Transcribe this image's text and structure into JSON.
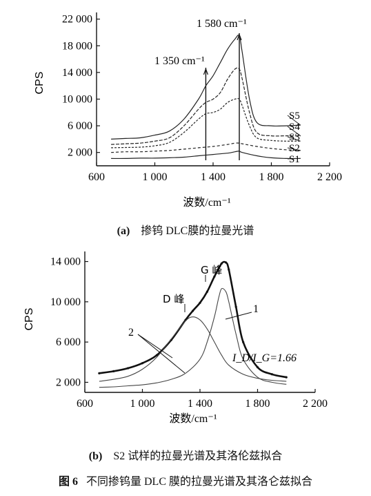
{
  "chart_data": [
    {
      "type": "line",
      "caption_id": "(a)",
      "caption_text": "掺钨 DLC膜的拉曼光谱",
      "xlabel": "波数/cm⁻¹",
      "ylabel": "CPS",
      "xlim": [
        600,
        2200
      ],
      "ylim": [
        0,
        23000
      ],
      "xticks": [
        "600",
        "1 000",
        "1 400",
        "1 800",
        "2 200"
      ],
      "yticks": [
        "2 000",
        "6 000",
        "10 000",
        "14 000",
        "18 000",
        "22 000"
      ],
      "annotations": [
        "1 580 cm⁻¹",
        "1 350 cm⁻¹"
      ],
      "markers_x": [
        1350,
        1580
      ],
      "series": [
        {
          "name": "S5",
          "x": [
            700,
            800,
            900,
            1000,
            1100,
            1200,
            1300,
            1350,
            1400,
            1450,
            1500,
            1550,
            1580,
            1600,
            1650,
            1700,
            1800,
            1900,
            2000
          ],
          "values": [
            4000,
            4100,
            4200,
            4600,
            5200,
            7000,
            10000,
            12000,
            13500,
            15500,
            17500,
            19000,
            19500,
            17000,
            10000,
            6500,
            6000,
            6000,
            6100
          ]
        },
        {
          "name": "S4",
          "x": [
            700,
            800,
            900,
            1000,
            1100,
            1200,
            1300,
            1350,
            1400,
            1450,
            1500,
            1550,
            1580,
            1600,
            1650,
            1700,
            1800,
            1900,
            2000
          ],
          "values": [
            3200,
            3300,
            3400,
            3700,
            4200,
            6000,
            8500,
            9500,
            10000,
            11000,
            13000,
            14500,
            14500,
            13000,
            8000,
            5000,
            4500,
            4500,
            4500
          ]
        },
        {
          "name": "S3",
          "x": [
            700,
            800,
            900,
            1000,
            1100,
            1200,
            1300,
            1350,
            1400,
            1450,
            1500,
            1550,
            1580,
            1600,
            1650,
            1700,
            1800,
            1900,
            2000
          ],
          "values": [
            2700,
            2750,
            2800,
            3000,
            3500,
            5000,
            7000,
            7800,
            8000,
            8500,
            9500,
            10000,
            10000,
            9000,
            6000,
            4200,
            3800,
            3700,
            3700
          ]
        },
        {
          "name": "S2",
          "x": [
            700,
            800,
            900,
            1000,
            1100,
            1200,
            1300,
            1400,
            1500,
            1550,
            1580,
            1600,
            1700,
            1800,
            1900,
            2000
          ],
          "values": [
            2000,
            2100,
            2100,
            2200,
            2300,
            2500,
            2700,
            2900,
            3200,
            3400,
            3400,
            3300,
            2900,
            2600,
            2400,
            2300
          ]
        },
        {
          "name": "S1",
          "x": [
            700,
            800,
            900,
            1000,
            1100,
            1200,
            1300,
            1400,
            1500,
            1550,
            1580,
            1600,
            1700,
            1800,
            1900,
            2000
          ],
          "values": [
            1100,
            1100,
            1150,
            1150,
            1200,
            1300,
            1500,
            1700,
            1900,
            2100,
            2200,
            2000,
            1500,
            1200,
            1100,
            1100
          ]
        }
      ]
    },
    {
      "type": "line",
      "caption_id": "(b)",
      "caption_text": "S2 试样的拉曼光谱及其洛伦兹拟合",
      "xlabel": "波数/cm⁻¹",
      "ylabel": "CPS",
      "xlim": [
        600,
        2200
      ],
      "ylim": [
        1000,
        15000
      ],
      "xticks": [
        "600",
        "1 000",
        "1 400",
        "1 800",
        "2 200"
      ],
      "yticks": [
        "2 000",
        "6 000",
        "10 000",
        "14 000"
      ],
      "annotations": {
        "g_peak": "G 峰",
        "d_peak": "D 峰",
        "label_1": "1",
        "label_2": "2",
        "ratio": "I_D/I_G=1.66"
      },
      "series": [
        {
          "name": "1",
          "x": [
            700,
            800,
            900,
            1000,
            1100,
            1200,
            1300,
            1350,
            1400,
            1450,
            1500,
            1550,
            1580,
            1600,
            1650,
            1700,
            1800,
            1900,
            2000
          ],
          "values": [
            2900,
            3100,
            3400,
            3900,
            4700,
            6200,
            8200,
            9100,
            9900,
            11000,
            12500,
            13800,
            13900,
            13200,
            9500,
            6000,
            3500,
            2800,
            2500
          ]
        },
        {
          "name": "2",
          "x": [
            700,
            800,
            900,
            1000,
            1100,
            1200,
            1300,
            1350,
            1400,
            1450,
            1500,
            1550,
            1600,
            1700,
            1800,
            1900,
            2000
          ],
          "values": [
            2100,
            2300,
            2600,
            3300,
            4500,
            6300,
            8100,
            8500,
            8200,
            7300,
            6000,
            4700,
            3700,
            2800,
            2400,
            2200,
            2100
          ]
        },
        {
          "name": "2",
          "x": [
            700,
            800,
            900,
            1000,
            1100,
            1200,
            1300,
            1400,
            1450,
            1500,
            1530,
            1550,
            1580,
            1600,
            1650,
            1700,
            1800,
            1900,
            2000
          ],
          "values": [
            1500,
            1550,
            1650,
            1750,
            1950,
            2300,
            2900,
            4300,
            6000,
            8500,
            10400,
            11300,
            11000,
            10000,
            6800,
            4300,
            2500,
            2000,
            1800
          ]
        }
      ]
    }
  ],
  "figure_caption_id": "图 6",
  "figure_caption_text": "不同掺钨量 DLC 膜的拉曼光谱及其洛仑兹拟合"
}
